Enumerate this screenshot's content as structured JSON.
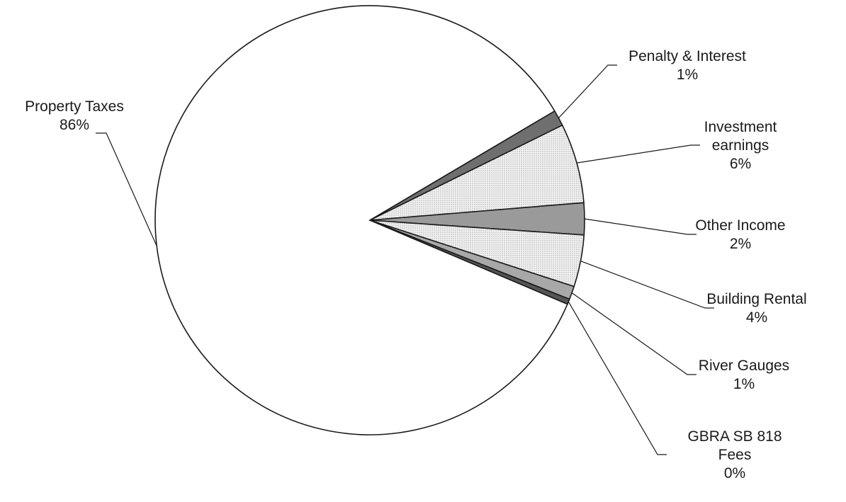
{
  "chart_data": {
    "type": "pie",
    "title": "",
    "slices": [
      {
        "label": [
          "Penalty & Interest"
        ],
        "percent_label": "1%",
        "value": 1.2,
        "fill": "#6f6f6f",
        "pattern": "solid"
      },
      {
        "label": [
          "Investment",
          "earnings"
        ],
        "percent_label": "6%",
        "value": 6.0,
        "fill": "#e4e4e4",
        "pattern": "dots"
      },
      {
        "label": [
          "Other Income"
        ],
        "percent_label": "2%",
        "value": 2.4,
        "fill": "#9a9a9a",
        "pattern": "solid"
      },
      {
        "label": [
          "Building Rental"
        ],
        "percent_label": "4%",
        "value": 3.9,
        "fill": "#e4e4e4",
        "pattern": "dots"
      },
      {
        "label": [
          "River Gauges"
        ],
        "percent_label": "1%",
        "value": 1.0,
        "fill": "#a8a8a8",
        "pattern": "solid"
      },
      {
        "label": [
          "GBRA SB 818",
          "Fees"
        ],
        "percent_label": "0%",
        "value": 0.4,
        "fill": "#555555",
        "pattern": "solid"
      },
      {
        "label": [
          "Property Taxes"
        ],
        "percent_label": "86%",
        "value": 85.1,
        "fill": "#ffffff",
        "pattern": "solid"
      }
    ],
    "legend": "none",
    "label_placement": "outside with leader lines"
  }
}
